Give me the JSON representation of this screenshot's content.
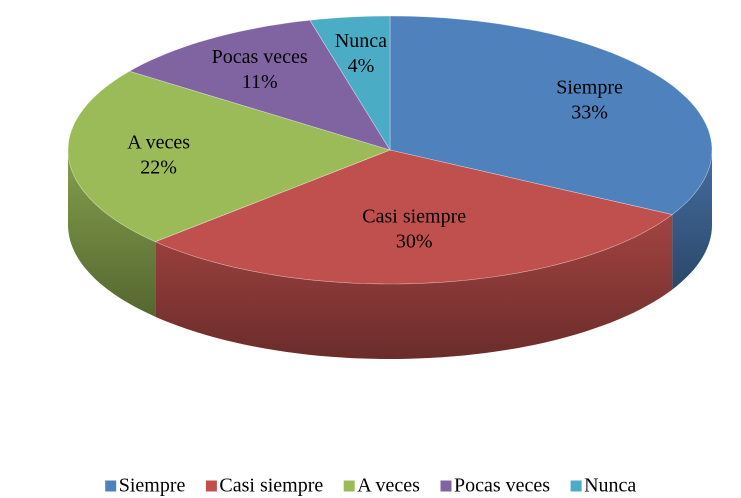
{
  "chart_data": {
    "type": "pie",
    "categories": [
      "Siempre",
      "Casi siempre",
      "A veces",
      "Pocas veces",
      "Nunca"
    ],
    "values": [
      33,
      30,
      22,
      11,
      4
    ],
    "value_labels": [
      "33%",
      "30%",
      "22%",
      "11%",
      "4%"
    ],
    "colors": [
      "#4f81bd",
      "#c0504d",
      "#9bbb59",
      "#8064a2",
      "#4bacc6"
    ],
    "legend": "bottom"
  }
}
